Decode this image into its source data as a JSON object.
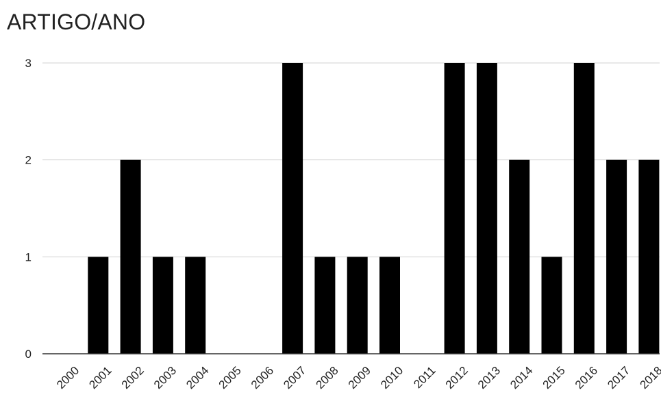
{
  "chart_data": {
    "type": "bar",
    "title": "ARTIGO/ANO",
    "categories": [
      "2000",
      "2001",
      "2002",
      "2003",
      "2004",
      "2005",
      "2006",
      "2007",
      "2008",
      "2009",
      "2010",
      "2011",
      "2012",
      "2013",
      "2014",
      "2015",
      "2016",
      "2017",
      "2018"
    ],
    "values": [
      0,
      1,
      2,
      1,
      1,
      0,
      0,
      3,
      1,
      1,
      1,
      0,
      3,
      3,
      2,
      1,
      3,
      2,
      2
    ],
    "ylim": [
      0,
      3
    ],
    "yticks": [
      0,
      1,
      2,
      3
    ],
    "grid": true,
    "bar_color": "#000000"
  }
}
